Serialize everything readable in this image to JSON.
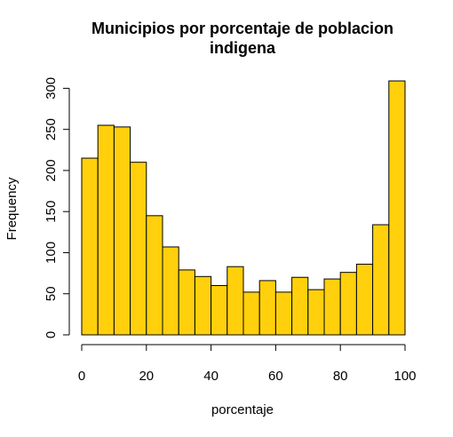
{
  "chart_data": {
    "type": "bar",
    "title_line1": "Municipios por porcentaje de poblacion",
    "title_line2": "indigena",
    "xlabel": "porcentaje",
    "ylabel": "Frequency",
    "bin_width": 5,
    "bins_start": [
      0,
      5,
      10,
      15,
      20,
      25,
      30,
      35,
      40,
      45,
      50,
      55,
      60,
      65,
      70,
      75,
      80,
      85,
      90,
      95
    ],
    "values": [
      215,
      255,
      253,
      210,
      145,
      107,
      79,
      71,
      60,
      83,
      52,
      66,
      52,
      70,
      55,
      68,
      76,
      86,
      134,
      309
    ],
    "xlim": [
      0,
      100
    ],
    "ylim": [
      0,
      310
    ],
    "x_ticks": [
      "0",
      "20",
      "40",
      "60",
      "80",
      "100"
    ],
    "y_ticks": [
      "0",
      "50",
      "100",
      "150",
      "200",
      "250",
      "300"
    ],
    "bar_color": "#FFD00B",
    "grid": false
  }
}
